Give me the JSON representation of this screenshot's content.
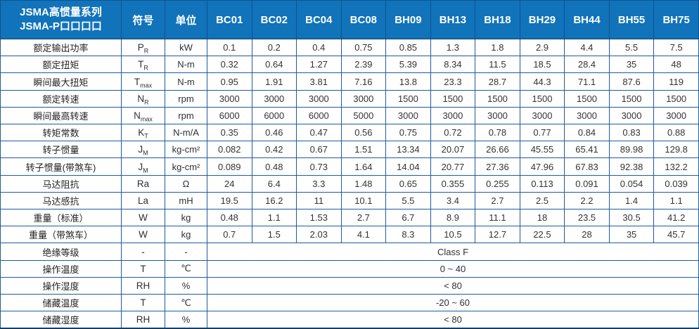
{
  "table": {
    "header": {
      "title_line1": "JSMA高惯量系列",
      "title_line2": "JSMA-P口口口口",
      "symbol_col": "符号",
      "unit_col": "单位",
      "models": [
        "BC01",
        "BC02",
        "BC04",
        "BC08",
        "BH09",
        "BH13",
        "BH18",
        "BH29",
        "BH44",
        "BH55",
        "BH75"
      ]
    },
    "rows": [
      {
        "label": "额定输出功率",
        "symbol": "P",
        "sub": "R",
        "unit": "kW",
        "values": [
          "0.1",
          "0.2",
          "0.4",
          "0.75",
          "0.85",
          "1.3",
          "1.8",
          "2.9",
          "4.4",
          "5.5",
          "7.5"
        ]
      },
      {
        "label": "额定扭矩",
        "symbol": "T",
        "sub": "R",
        "unit": "N-m",
        "values": [
          "0.32",
          "0.64",
          "1.27",
          "2.39",
          "5.39",
          "8.34",
          "11.5",
          "18.5",
          "28.4",
          "35",
          "48"
        ]
      },
      {
        "label": "瞬间最大扭矩",
        "symbol": "T",
        "sub": "max",
        "unit": "N-m",
        "values": [
          "0.95",
          "1.91",
          "3.81",
          "7.16",
          "13.8",
          "23.3",
          "28.7",
          "44.3",
          "71.1",
          "87.6",
          "119"
        ]
      },
      {
        "label": "额定转速",
        "symbol": "N",
        "sub": "R",
        "unit": "rpm",
        "values": [
          "3000",
          "3000",
          "3000",
          "3000",
          "1500",
          "1500",
          "1500",
          "1500",
          "1500",
          "1500",
          "1500"
        ]
      },
      {
        "label": "瞬间最高转速",
        "symbol": "N",
        "sub": "max",
        "unit": "rpm",
        "values": [
          "6000",
          "6000",
          "6000",
          "5000",
          "3000",
          "3000",
          "3000",
          "3000",
          "3000",
          "3000",
          "3000"
        ]
      },
      {
        "label": "转矩常数",
        "symbol": "K",
        "sub": "T",
        "unit": "N-m/A",
        "values": [
          "0.35",
          "0.46",
          "0.47",
          "0.56",
          "0.75",
          "0.72",
          "0.78",
          "0.77",
          "0.84",
          "0.83",
          "0.88"
        ]
      },
      {
        "label": "转子惯量",
        "symbol": "J",
        "sub": "M",
        "unit": "kg-cm²",
        "values": [
          "0.082",
          "0.42",
          "0.67",
          "1.51",
          "13.34",
          "20.07",
          "26.66",
          "45.55",
          "65.41",
          "89.98",
          "129.8"
        ]
      },
      {
        "label": "转子惯量(带煞车)",
        "symbol": "J",
        "sub": "M",
        "unit": "kg-cm²",
        "values": [
          "0.089",
          "0.48",
          "0.73",
          "1.64",
          "14.04",
          "20.77",
          "27.36",
          "47.96",
          "67.83",
          "92.38",
          "132.2"
        ]
      },
      {
        "label": "马达阻抗",
        "symbol": "Ra",
        "sub": "",
        "unit": "Ω",
        "values": [
          "24",
          "6.4",
          "3.3",
          "1.48",
          "0.65",
          "0.355",
          "0.255",
          "0.113",
          "0.091",
          "0.054",
          "0.039"
        ]
      },
      {
        "label": "马达感抗",
        "symbol": "La",
        "sub": "",
        "unit": "mH",
        "values": [
          "19.5",
          "16.2",
          "11",
          "10.1",
          "5.5",
          "3.4",
          "2.7",
          "2.5",
          "2.2",
          "1.4",
          "1.1"
        ]
      },
      {
        "label": "重量（标准）",
        "symbol": "W",
        "sub": "",
        "unit": "kg",
        "values": [
          "0.48",
          "1.1",
          "1.53",
          "2.7",
          "6.7",
          "8.9",
          "11.1",
          "18",
          "23.5",
          "30.5",
          "41.2"
        ]
      },
      {
        "label": "重量（带煞车）",
        "symbol": "W",
        "sub": "",
        "unit": "kg",
        "values": [
          "0.7",
          "1.5",
          "2.03",
          "4.1",
          "8.3",
          "10.5",
          "12.7",
          "22.5",
          "28",
          "35",
          "45.7"
        ]
      },
      {
        "label": "绝缘等级",
        "symbol": "-",
        "sub": "",
        "unit": "-",
        "merged": true,
        "value": "Class F"
      },
      {
        "label": "操作温度",
        "symbol": "T",
        "sub": "",
        "unit": "℃",
        "merged": true,
        "value": "0 ~ 40"
      },
      {
        "label": "操作湿度",
        "symbol": "RH",
        "sub": "",
        "unit": "%",
        "merged": true,
        "value": "< 80"
      },
      {
        "label": "储藏温度",
        "symbol": "T",
        "sub": "",
        "unit": "℃",
        "merged": true,
        "value": "-20 ~ 60"
      },
      {
        "label": "储藏湿度",
        "symbol": "RH",
        "sub": "",
        "unit": "%",
        "merged": true,
        "value": "< 80"
      }
    ]
  },
  "colors": {
    "header_bg": "#1173ba",
    "header_text": "#ffffff",
    "grid_border": "#1d5c99",
    "cell_text": "#333333"
  }
}
